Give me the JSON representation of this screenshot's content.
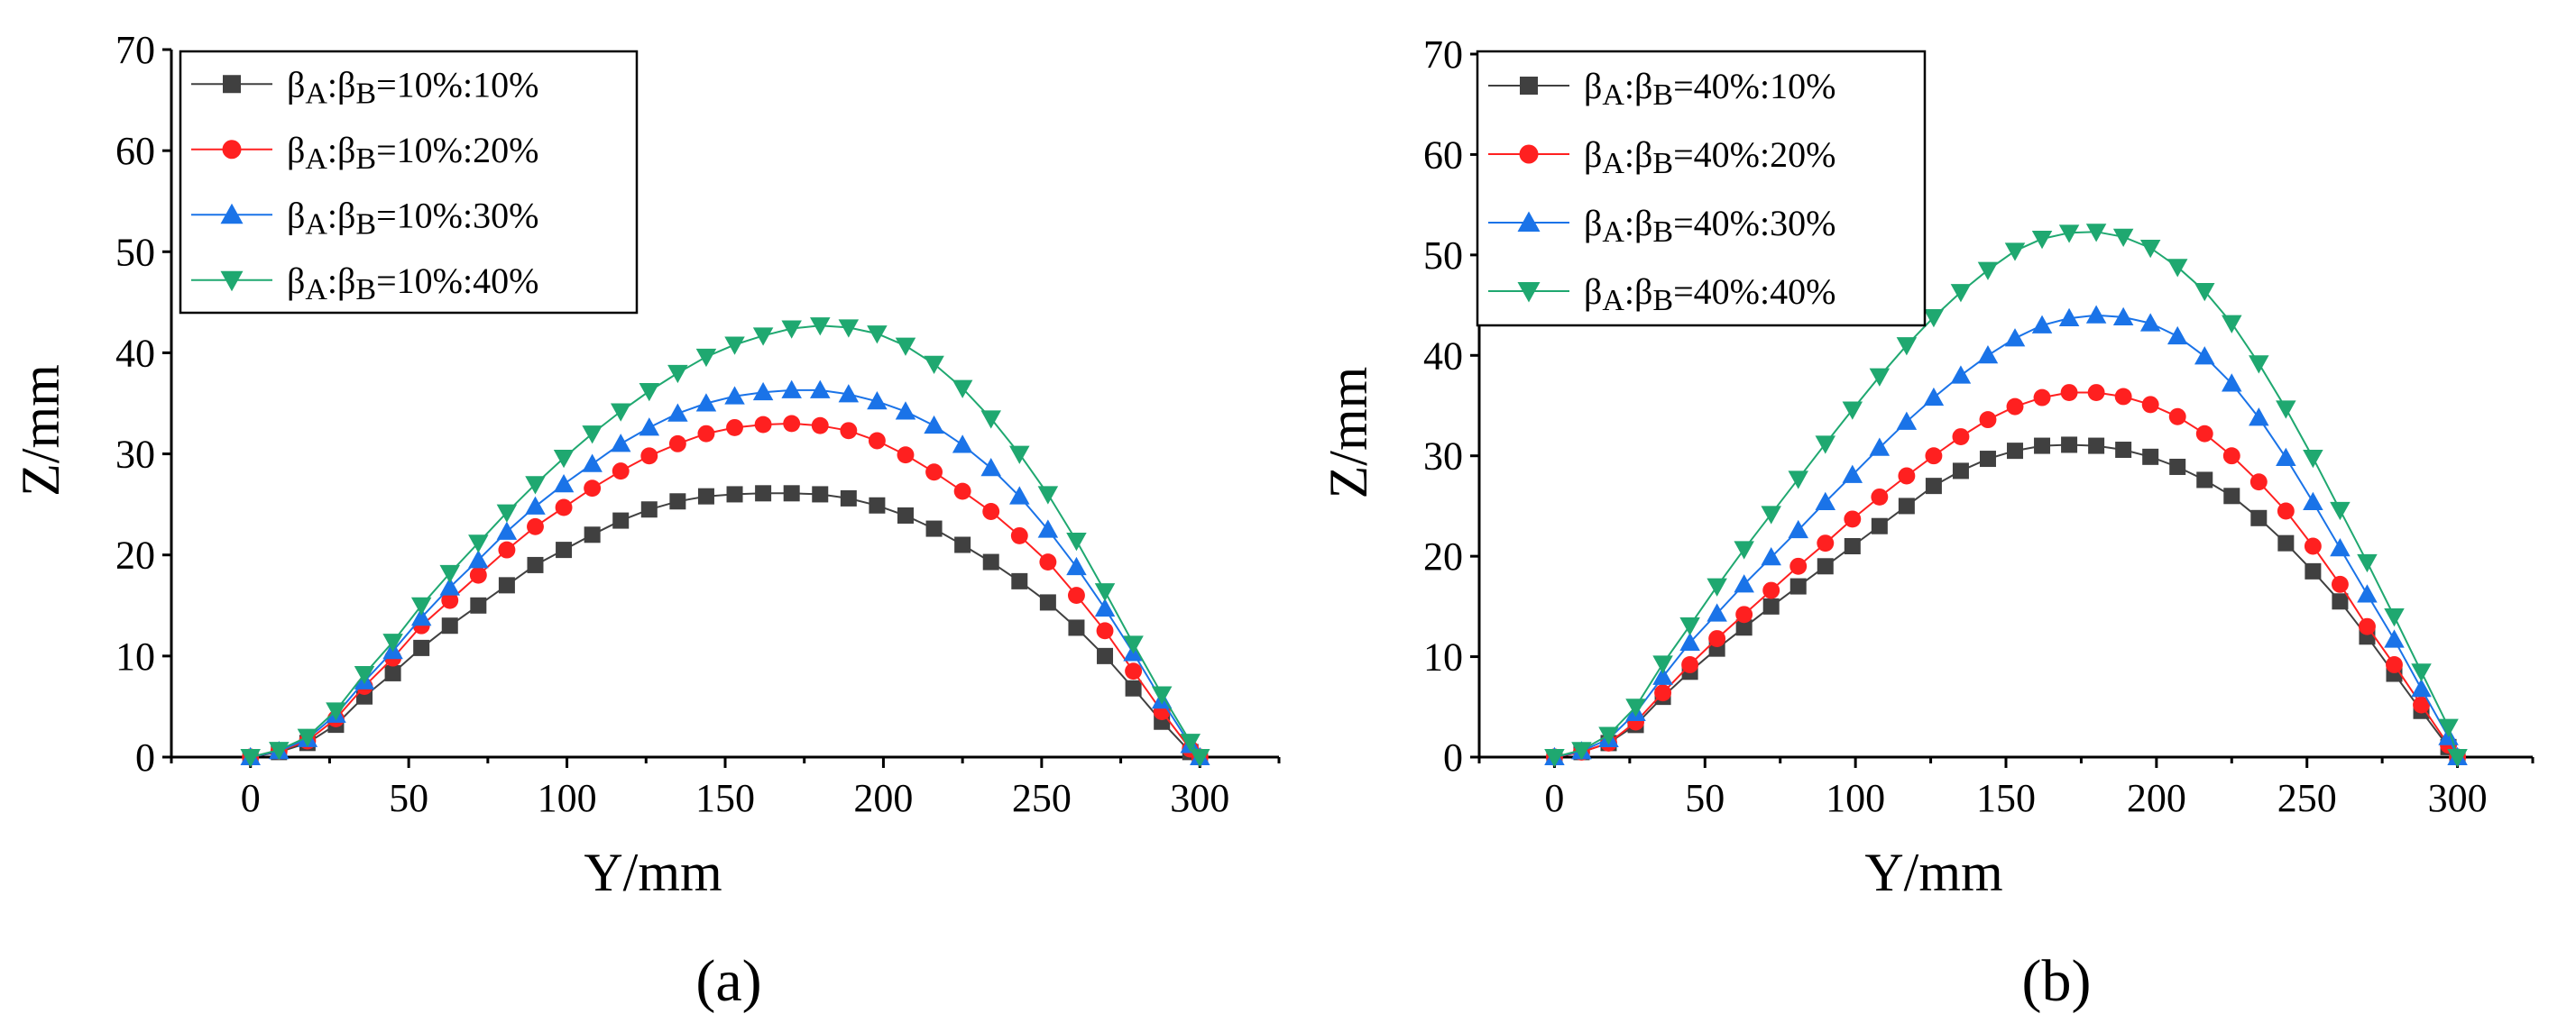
{
  "panel_labels": [
    "(a)",
    "(b)"
  ],
  "colors": {
    "s1": "#404040",
    "s2": "#ff2020",
    "s3": "#1a73e8",
    "s4": "#1fa870",
    "axis": "#000000"
  },
  "chart_data": [
    {
      "type": "line",
      "panel": "(a)",
      "title": "",
      "xlabel": "Y/mm",
      "ylabel": "Z/mm",
      "xlim": [
        -25,
        325
      ],
      "ylim": [
        0,
        70
      ],
      "xticks": [
        0,
        50,
        100,
        150,
        200,
        250,
        300
      ],
      "yticks": [
        0,
        10,
        20,
        30,
        40,
        50,
        60,
        70
      ],
      "legend_position": "top-left",
      "x": [
        0,
        9,
        18,
        27,
        36,
        45,
        54,
        63,
        72,
        81,
        90,
        99,
        108,
        117,
        126,
        135,
        144,
        153,
        162,
        171,
        180,
        189,
        198,
        207,
        216,
        225,
        234,
        243,
        252,
        261,
        270,
        279,
        288,
        297,
        300
      ],
      "series": [
        {
          "name": "10%:10%",
          "label_pre": "βA:βB=",
          "label_post": "10%:10%",
          "marker": "square",
          "color_key": "s1",
          "values": [
            0,
            0.5,
            1.4,
            3.2,
            6.0,
            8.3,
            10.8,
            13.0,
            15.0,
            17.0,
            19.0,
            20.5,
            22.0,
            23.4,
            24.5,
            25.3,
            25.8,
            26.0,
            26.1,
            26.1,
            26.0,
            25.6,
            24.9,
            23.9,
            22.6,
            21.0,
            19.3,
            17.4,
            15.3,
            12.8,
            10.0,
            6.8,
            3.5,
            0.5,
            0
          ]
        },
        {
          "name": "10%:20%",
          "label_pre": "βA:βB=",
          "label_post": "10%:20%",
          "marker": "circle",
          "color_key": "s2",
          "values": [
            0,
            0.6,
            1.6,
            3.8,
            7.0,
            9.8,
            13.0,
            15.5,
            18.0,
            20.5,
            22.8,
            24.7,
            26.6,
            28.3,
            29.8,
            31.0,
            32.0,
            32.6,
            32.9,
            33.0,
            32.8,
            32.3,
            31.3,
            29.9,
            28.2,
            26.3,
            24.3,
            21.9,
            19.3,
            16.0,
            12.5,
            8.5,
            4.5,
            0.8,
            0
          ]
        },
        {
          "name": "10%:30%",
          "label_pre": "βA:βB=",
          "label_post": "10%:30%",
          "marker": "triangle-up",
          "color_key": "s3",
          "values": [
            0,
            0.6,
            1.8,
            4.2,
            7.5,
            10.5,
            13.8,
            16.8,
            19.5,
            22.3,
            24.8,
            27.0,
            29.0,
            31.0,
            32.6,
            34.0,
            35.0,
            35.7,
            36.1,
            36.3,
            36.3,
            35.9,
            35.2,
            34.2,
            32.8,
            30.9,
            28.6,
            25.8,
            22.5,
            18.8,
            14.7,
            10.3,
            5.6,
            1.2,
            0
          ]
        },
        {
          "name": "10%:40%",
          "label_pre": "βA:βB=",
          "label_post": "10%:40%",
          "marker": "triangle-down",
          "color_key": "s4",
          "values": [
            0,
            0.7,
            2.0,
            4.6,
            8.2,
            11.4,
            15.0,
            18.2,
            21.2,
            24.2,
            27.0,
            29.6,
            32.0,
            34.2,
            36.2,
            38.0,
            39.6,
            40.8,
            41.7,
            42.4,
            42.7,
            42.5,
            41.9,
            40.7,
            38.9,
            36.5,
            33.5,
            30.0,
            26.0,
            21.4,
            16.4,
            11.2,
            6.2,
            1.5,
            0
          ]
        }
      ]
    },
    {
      "type": "line",
      "panel": "(b)",
      "title": "",
      "xlabel": "Y/mm",
      "ylabel": "Z/mm",
      "xlim": [
        -25,
        325
      ],
      "ylim": [
        0,
        70
      ],
      "xticks": [
        0,
        50,
        100,
        150,
        200,
        250,
        300
      ],
      "yticks": [
        0,
        10,
        20,
        30,
        40,
        50,
        60,
        70
      ],
      "legend_position": "top-left",
      "x": [
        0,
        9,
        18,
        27,
        36,
        45,
        54,
        63,
        72,
        81,
        90,
        99,
        108,
        117,
        126,
        135,
        144,
        153,
        162,
        171,
        180,
        189,
        198,
        207,
        216,
        225,
        234,
        243,
        252,
        261,
        270,
        279,
        288,
        297,
        300
      ],
      "series": [
        {
          "name": "40%:10%",
          "label_pre": "βA:βB=",
          "label_post": "40%:10%",
          "marker": "square",
          "color_key": "s1",
          "values": [
            0,
            0.5,
            1.4,
            3.2,
            6.0,
            8.5,
            10.8,
            12.9,
            15.0,
            17.0,
            19.0,
            21.0,
            23.0,
            25.0,
            27.0,
            28.5,
            29.7,
            30.5,
            31.0,
            31.1,
            31.0,
            30.6,
            29.9,
            28.9,
            27.6,
            26.0,
            23.8,
            21.3,
            18.5,
            15.5,
            12.0,
            8.3,
            4.6,
            1.0,
            0
          ]
        },
        {
          "name": "40%:20%",
          "label_pre": "βA:βB=",
          "label_post": "40%:20%",
          "marker": "circle",
          "color_key": "s2",
          "values": [
            0,
            0.5,
            1.4,
            3.5,
            6.4,
            9.2,
            11.8,
            14.2,
            16.6,
            19.0,
            21.3,
            23.7,
            25.9,
            28.0,
            30.0,
            31.9,
            33.6,
            34.9,
            35.8,
            36.3,
            36.3,
            35.9,
            35.1,
            33.9,
            32.2,
            30.0,
            27.4,
            24.5,
            21.0,
            17.2,
            13.0,
            9.2,
            5.2,
            1.2,
            0
          ]
        },
        {
          "name": "40%:30%",
          "label_pre": "βA:βB=",
          "label_post": "40%:30%",
          "marker": "triangle-up",
          "color_key": "s3",
          "values": [
            0,
            0.6,
            1.8,
            4.4,
            8.0,
            11.4,
            14.3,
            17.2,
            19.9,
            22.6,
            25.4,
            28.1,
            30.8,
            33.4,
            35.8,
            38.0,
            40.0,
            41.7,
            43.0,
            43.7,
            44.0,
            43.8,
            43.2,
            41.9,
            39.9,
            37.2,
            33.8,
            29.8,
            25.4,
            20.8,
            16.2,
            11.7,
            6.8,
            2.0,
            0
          ]
        },
        {
          "name": "40%:40%",
          "label_pre": "βA:βB=",
          "label_post": "40%:40%",
          "marker": "triangle-down",
          "color_key": "s4",
          "values": [
            0,
            0.7,
            2.2,
            5.0,
            9.3,
            13.1,
            17.0,
            20.7,
            24.2,
            27.7,
            31.2,
            34.6,
            37.9,
            41.0,
            43.8,
            46.3,
            48.5,
            50.4,
            51.6,
            52.2,
            52.3,
            51.8,
            50.7,
            48.8,
            46.4,
            43.2,
            39.2,
            34.7,
            29.8,
            24.6,
            19.4,
            14.0,
            8.5,
            3.0,
            0
          ]
        }
      ]
    }
  ]
}
